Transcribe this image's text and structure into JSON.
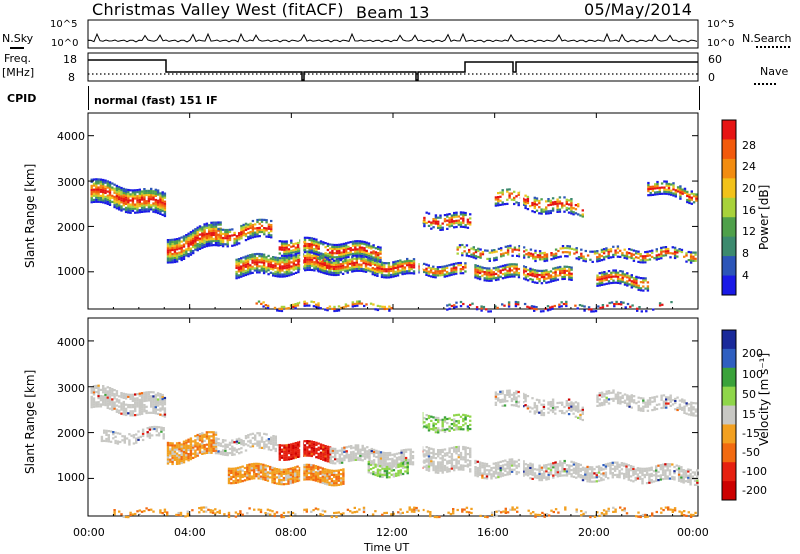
{
  "header": {
    "station": "Christmas Valley West (fitACF)",
    "beam": "Beam 13",
    "date": "05/May/2014",
    "cpid_label": "CPID",
    "cpid_value": "normal (fast) 151 IF"
  },
  "strips": {
    "nsky_label": "N.Sky",
    "nsearch_label": "N.Search",
    "freq_label_1": "Freq.",
    "freq_label_2": "[MHz]",
    "nave_label": "Nave",
    "noise_ticks": [
      "10^5",
      "10^0"
    ],
    "noise_ticks_right": [
      "10^5",
      "10^0"
    ],
    "freq_ticks": [
      "18",
      "8"
    ],
    "nave_ticks": [
      "60",
      "0"
    ]
  },
  "chart_data": [
    {
      "type": "heatmap",
      "panel": "power",
      "xlabel": "Time UT",
      "ylabel": "Slant Range [km]",
      "x_ticks": [
        "00:00",
        "04:00",
        "08:00",
        "12:00",
        "16:00",
        "20:00",
        "00:00"
      ],
      "y_ticks": [
        1000,
        2000,
        3000,
        4000
      ],
      "xlim_hours": [
        0,
        24
      ],
      "ylim_km": [
        180,
        4500
      ],
      "colorbar": {
        "label": "Power [dB]",
        "ticks": [
          "4",
          "8",
          "12",
          "16",
          "20",
          "24",
          "28"
        ],
        "colors": [
          "#1a1ae6",
          "#2c55b8",
          "#3c8a6e",
          "#4fa04a",
          "#a8d23a",
          "#f2c21a",
          "#f28c10",
          "#f25a0c",
          "#e61414"
        ]
      }
    },
    {
      "type": "heatmap",
      "panel": "velocity",
      "xlabel": "Time UT",
      "ylabel": "Slant Range [km]",
      "x_ticks": [
        "00:00",
        "04:00",
        "08:00",
        "12:00",
        "16:00",
        "20:00",
        "00:00"
      ],
      "y_ticks": [
        1000,
        2000,
        3000,
        4000
      ],
      "xlim_hours": [
        0,
        24
      ],
      "ylim_km": [
        180,
        4500
      ],
      "colorbar": {
        "label": "Velocity [m s⁻¹]",
        "ticks": [
          "200",
          "100",
          "50",
          "15",
          "-15",
          "-50",
          "-100",
          "-200"
        ],
        "colors": [
          "#1a2a9a",
          "#2f5fc0",
          "#3aa23a",
          "#8fd64a",
          "#c8c8c4",
          "#f2a020",
          "#f26a10",
          "#e62010",
          "#cc0000"
        ]
      }
    }
  ],
  "colors": {
    "ground_scatter": "#c8c8c4",
    "frame": "#000000"
  }
}
